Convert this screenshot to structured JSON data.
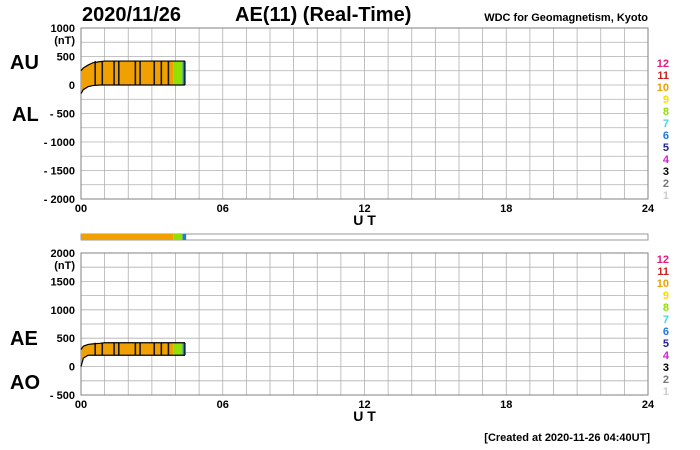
{
  "header": {
    "date": "2020/11/26",
    "title": "AE(11) (Real-Time)",
    "source": "WDC for Geomagnetism, Kyoto"
  },
  "footer": {
    "created": "[Created at 2020-11-26 04:40UT]"
  },
  "legend": {
    "items": [
      {
        "label": "12",
        "color": "#e6197e"
      },
      {
        "label": "11",
        "color": "#cc1f1f"
      },
      {
        "label": "10",
        "color": "#f0a000"
      },
      {
        "label": "9",
        "color": "#f5e000"
      },
      {
        "label": "8",
        "color": "#90e000"
      },
      {
        "label": "7",
        "color": "#3ad9e0"
      },
      {
        "label": "6",
        "color": "#1f78e6"
      },
      {
        "label": "5",
        "color": "#1f1fa0"
      },
      {
        "label": "4",
        "color": "#d020d0"
      },
      {
        "label": "3",
        "color": "#000000"
      },
      {
        "label": "2",
        "color": "#777777"
      },
      {
        "label": "1",
        "color": "#cccccc"
      }
    ]
  },
  "chart_data": [
    {
      "type": "area",
      "name": "AU/AL",
      "labels": [
        "AU",
        "AL"
      ],
      "unit": "(nT)",
      "xlabel": "U T",
      "xlim": [
        0,
        24
      ],
      "xticks": [
        "00",
        "06",
        "12",
        "18",
        "24"
      ],
      "ylim": [
        -2000,
        1000
      ],
      "yticks": [
        "1000",
        "500",
        "0",
        "- 500",
        "- 1000",
        "- 1500",
        "- 2000"
      ],
      "upper": {
        "x": [
          0,
          0.1,
          0.3,
          0.5,
          0.8,
          1.0,
          1.5,
          2.0,
          2.5,
          3.0,
          3.5,
          4.0,
          4.4
        ],
        "y": [
          250,
          300,
          350,
          390,
          410,
          420,
          420,
          420,
          420,
          420,
          420,
          420,
          420
        ]
      },
      "lower": {
        "x": [
          0,
          0.1,
          0.3,
          0.5,
          0.8,
          1.0,
          1.5,
          2.0,
          2.5,
          3.0,
          3.5,
          4.0,
          4.4
        ],
        "y": [
          -150,
          -80,
          -30,
          -10,
          0,
          0,
          0,
          0,
          0,
          0,
          0,
          0,
          0
        ]
      },
      "dips": [
        0.6,
        0.9,
        1.4,
        1.6,
        2.3,
        2.5,
        3.1,
        3.4,
        3.7
      ],
      "stations": [
        {
          "from": 0,
          "to": 3.9,
          "color": "#f0a000"
        },
        {
          "from": 3.9,
          "to": 4.3,
          "color": "#90e000"
        },
        {
          "from": 4.3,
          "to": 4.45,
          "color": "#1f78e6"
        }
      ]
    },
    {
      "type": "area",
      "name": "AE/AO",
      "labels": [
        "AE",
        "AO"
      ],
      "unit": "(nT)",
      "xlabel": "U T",
      "xlim": [
        0,
        24
      ],
      "xticks": [
        "00",
        "06",
        "12",
        "18",
        "24"
      ],
      "ylim": [
        -500,
        2000
      ],
      "yticks": [
        "2000",
        "1500",
        "1000",
        "500",
        "0",
        "- 500"
      ],
      "upper": {
        "x": [
          0,
          0.1,
          0.3,
          0.5,
          0.8,
          1.0,
          1.5,
          2.0,
          2.5,
          3.0,
          3.5,
          4.0,
          4.4
        ],
        "y": [
          300,
          360,
          390,
          400,
          410,
          420,
          420,
          420,
          420,
          420,
          420,
          420,
          420
        ]
      },
      "lower": {
        "x": [
          0,
          0.1,
          0.3,
          0.5,
          0.8,
          1.0,
          1.5,
          2.0,
          2.5,
          3.0,
          3.5,
          4.0,
          4.4
        ],
        "y": [
          0,
          150,
          200,
          200,
          200,
          200,
          200,
          200,
          200,
          200,
          200,
          200,
          200
        ]
      },
      "dips": [
        0.6,
        0.9,
        1.4,
        1.6,
        2.3,
        2.5,
        3.1,
        3.4,
        3.7
      ],
      "stations": [
        {
          "from": 0,
          "to": 3.9,
          "color": "#f0a000"
        },
        {
          "from": 3.9,
          "to": 4.3,
          "color": "#90e000"
        },
        {
          "from": 4.3,
          "to": 4.45,
          "color": "#1f78e6"
        }
      ]
    }
  ],
  "station_bar": [
    {
      "from": 0,
      "to": 3.9,
      "color": "#f0a000"
    },
    {
      "from": 3.9,
      "to": 4.3,
      "color": "#90e000"
    },
    {
      "from": 4.3,
      "to": 4.45,
      "color": "#1f78e6"
    }
  ]
}
